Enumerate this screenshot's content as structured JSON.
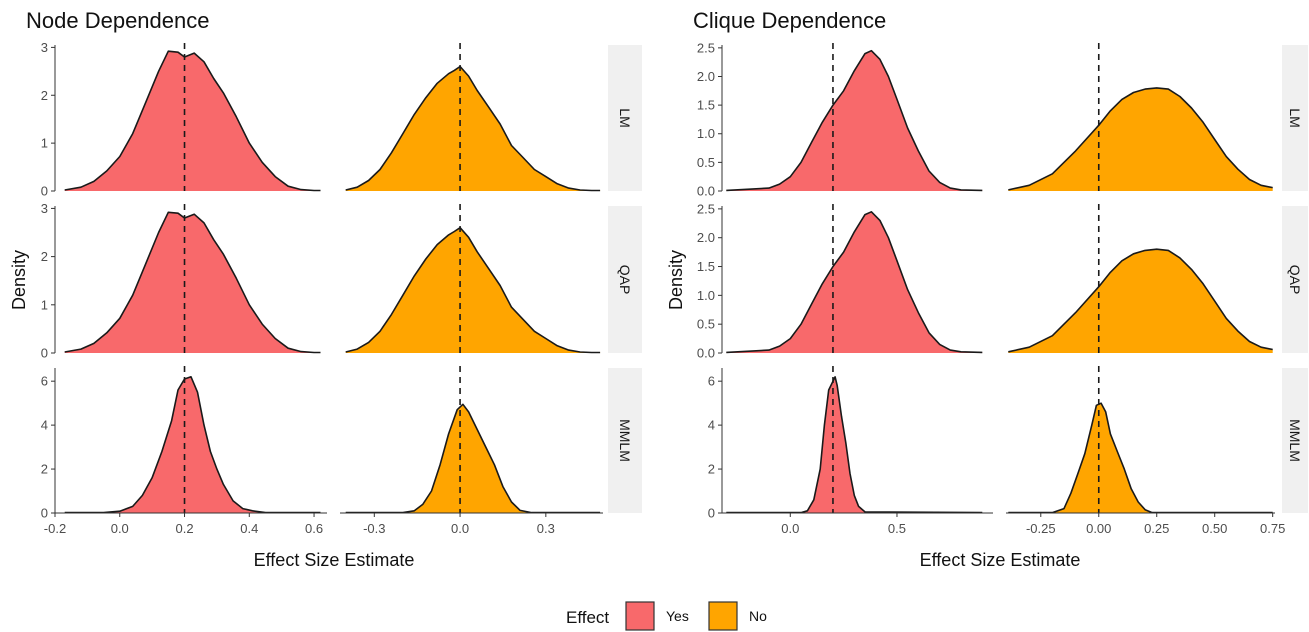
{
  "legend": {
    "title": "Effect",
    "items": [
      {
        "label": "Yes",
        "color": "#F8696B"
      },
      {
        "label": "No",
        "color": "#FFA500"
      }
    ]
  },
  "chart_data": [
    {
      "type": "area",
      "title": "Node Dependence",
      "xlabel": "Effect Size Estimate",
      "ylabel": "Density",
      "rows": [
        "LM",
        "QAP",
        "MMLM"
      ],
      "columns": [
        {
          "effect": "Yes",
          "color": "#F8696B",
          "reference_line": 0.2,
          "xlim": [
            -0.2,
            0.64
          ],
          "xticks": [
            "-0.2",
            "0.0",
            "0.2",
            "0.4",
            "0.6"
          ]
        },
        {
          "effect": "No",
          "color": "#FFA500",
          "reference_line": 0.0,
          "xlim": [
            -0.42,
            0.5
          ],
          "xticks": [
            "-0.3",
            "0.0",
            "0.3"
          ]
        }
      ],
      "y_axes": [
        {
          "row": "LM",
          "ylim": [
            0,
            3.05
          ],
          "yticks": [
            "0",
            "1",
            "2",
            "3"
          ]
        },
        {
          "row": "QAP",
          "ylim": [
            0,
            3.05
          ],
          "yticks": [
            "0",
            "1",
            "2",
            "3"
          ]
        },
        {
          "row": "MMLM",
          "ylim": [
            0,
            6.6
          ],
          "yticks": [
            "0",
            "2",
            "4",
            "6"
          ]
        }
      ],
      "series": [
        {
          "row": "LM",
          "effect": "Yes",
          "x": [
            -0.17,
            -0.12,
            -0.08,
            -0.04,
            0.0,
            0.04,
            0.08,
            0.12,
            0.15,
            0.18,
            0.2,
            0.23,
            0.26,
            0.29,
            0.32,
            0.36,
            0.4,
            0.44,
            0.48,
            0.52,
            0.56,
            0.6,
            0.62
          ],
          "y": [
            0.02,
            0.08,
            0.2,
            0.42,
            0.72,
            1.2,
            1.85,
            2.5,
            2.92,
            2.9,
            2.8,
            2.88,
            2.7,
            2.35,
            2.05,
            1.55,
            1.0,
            0.6,
            0.3,
            0.1,
            0.03,
            0.01,
            0.01
          ]
        },
        {
          "row": "LM",
          "effect": "No",
          "x": [
            -0.4,
            -0.36,
            -0.32,
            -0.28,
            -0.24,
            -0.2,
            -0.16,
            -0.12,
            -0.08,
            -0.04,
            -0.02,
            0.0,
            0.03,
            0.06,
            0.1,
            0.14,
            0.18,
            0.22,
            0.26,
            0.3,
            0.34,
            0.38,
            0.42,
            0.46,
            0.49
          ],
          "y": [
            0.02,
            0.08,
            0.22,
            0.45,
            0.8,
            1.2,
            1.6,
            1.95,
            2.25,
            2.45,
            2.52,
            2.6,
            2.4,
            2.1,
            1.75,
            1.4,
            0.95,
            0.7,
            0.45,
            0.3,
            0.15,
            0.06,
            0.02,
            0.01,
            0.01
          ]
        },
        {
          "row": "QAP",
          "effect": "Yes",
          "x": [
            -0.17,
            -0.12,
            -0.08,
            -0.04,
            0.0,
            0.04,
            0.08,
            0.12,
            0.15,
            0.18,
            0.2,
            0.23,
            0.26,
            0.29,
            0.32,
            0.36,
            0.4,
            0.44,
            0.48,
            0.52,
            0.56,
            0.6,
            0.62
          ],
          "y": [
            0.02,
            0.08,
            0.2,
            0.42,
            0.72,
            1.2,
            1.85,
            2.5,
            2.92,
            2.9,
            2.8,
            2.88,
            2.7,
            2.35,
            2.05,
            1.55,
            1.0,
            0.6,
            0.3,
            0.1,
            0.03,
            0.01,
            0.01
          ]
        },
        {
          "row": "QAP",
          "effect": "No",
          "x": [
            -0.4,
            -0.36,
            -0.32,
            -0.28,
            -0.24,
            -0.2,
            -0.16,
            -0.12,
            -0.08,
            -0.04,
            -0.02,
            0.0,
            0.03,
            0.06,
            0.1,
            0.14,
            0.18,
            0.22,
            0.26,
            0.3,
            0.34,
            0.38,
            0.42,
            0.46,
            0.49
          ],
          "y": [
            0.02,
            0.08,
            0.22,
            0.45,
            0.8,
            1.2,
            1.6,
            1.95,
            2.25,
            2.45,
            2.52,
            2.6,
            2.4,
            2.1,
            1.75,
            1.4,
            0.95,
            0.7,
            0.45,
            0.3,
            0.15,
            0.06,
            0.02,
            0.01,
            0.01
          ]
        },
        {
          "row": "MMLM",
          "effect": "Yes",
          "x": [
            -0.17,
            -0.05,
            0.0,
            0.04,
            0.07,
            0.1,
            0.13,
            0.16,
            0.18,
            0.2,
            0.22,
            0.24,
            0.26,
            0.28,
            0.3,
            0.32,
            0.35,
            0.38,
            0.41,
            0.45,
            0.62
          ],
          "y": [
            0.02,
            0.02,
            0.08,
            0.3,
            0.8,
            1.6,
            2.8,
            4.2,
            5.6,
            6.1,
            6.2,
            5.5,
            4.0,
            2.8,
            2.0,
            1.3,
            0.55,
            0.2,
            0.1,
            0.02,
            0.02
          ]
        },
        {
          "row": "MMLM",
          "effect": "No",
          "x": [
            -0.4,
            -0.2,
            -0.16,
            -0.13,
            -0.1,
            -0.07,
            -0.04,
            -0.01,
            0.01,
            0.03,
            0.06,
            0.09,
            0.12,
            0.15,
            0.18,
            0.21,
            0.25,
            0.49
          ],
          "y": [
            0.02,
            0.02,
            0.1,
            0.4,
            1.0,
            2.2,
            3.6,
            4.7,
            4.95,
            4.6,
            3.8,
            3.0,
            2.2,
            1.2,
            0.5,
            0.12,
            0.02,
            0.02
          ]
        }
      ]
    },
    {
      "type": "area",
      "title": "Clique Dependence",
      "xlabel": "Effect Size Estimate",
      "ylabel": "Density",
      "rows": [
        "LM",
        "QAP",
        "MMLM"
      ],
      "columns": [
        {
          "effect": "Yes",
          "color": "#F8696B",
          "reference_line": 0.2,
          "xlim": [
            -0.32,
            0.95
          ],
          "xticks": [
            "0.0",
            "0.5"
          ]
        },
        {
          "effect": "No",
          "color": "#FFA500",
          "reference_line": 0.0,
          "xlim": [
            -0.4,
            0.76
          ],
          "xticks": [
            "-0.25",
            "0.00",
            "0.25",
            "0.50",
            "0.75"
          ]
        }
      ],
      "y_axes": [
        {
          "row": "LM",
          "ylim": [
            0,
            2.55
          ],
          "yticks": [
            "0.0",
            "0.5",
            "1.0",
            "1.5",
            "2.0",
            "2.5"
          ]
        },
        {
          "row": "QAP",
          "ylim": [
            0,
            2.55
          ],
          "yticks": [
            "0.0",
            "0.5",
            "1.0",
            "1.5",
            "2.0",
            "2.5"
          ]
        },
        {
          "row": "MMLM",
          "ylim": [
            0,
            6.6
          ],
          "yticks": [
            "0",
            "2",
            "4",
            "6"
          ]
        }
      ],
      "series": [
        {
          "row": "LM",
          "effect": "Yes",
          "x": [
            -0.3,
            -0.1,
            -0.05,
            0.0,
            0.05,
            0.1,
            0.15,
            0.2,
            0.25,
            0.3,
            0.35,
            0.38,
            0.42,
            0.46,
            0.5,
            0.55,
            0.6,
            0.65,
            0.7,
            0.75,
            0.8,
            0.9
          ],
          "y": [
            0.01,
            0.05,
            0.12,
            0.25,
            0.5,
            0.85,
            1.2,
            1.5,
            1.75,
            2.1,
            2.4,
            2.45,
            2.3,
            2.0,
            1.6,
            1.1,
            0.7,
            0.35,
            0.15,
            0.05,
            0.02,
            0.01
          ]
        },
        {
          "row": "LM",
          "effect": "No",
          "x": [
            -0.39,
            -0.3,
            -0.2,
            -0.1,
            0.0,
            0.05,
            0.1,
            0.15,
            0.2,
            0.25,
            0.3,
            0.35,
            0.4,
            0.45,
            0.5,
            0.55,
            0.6,
            0.65,
            0.7,
            0.75
          ],
          "y": [
            0.02,
            0.1,
            0.3,
            0.7,
            1.15,
            1.4,
            1.6,
            1.72,
            1.78,
            1.8,
            1.78,
            1.65,
            1.45,
            1.2,
            0.9,
            0.6,
            0.38,
            0.2,
            0.1,
            0.06
          ]
        },
        {
          "row": "QAP",
          "effect": "Yes",
          "x": [
            -0.3,
            -0.1,
            -0.05,
            0.0,
            0.05,
            0.1,
            0.15,
            0.2,
            0.25,
            0.3,
            0.35,
            0.38,
            0.42,
            0.46,
            0.5,
            0.55,
            0.6,
            0.65,
            0.7,
            0.75,
            0.8,
            0.9
          ],
          "y": [
            0.01,
            0.05,
            0.12,
            0.25,
            0.5,
            0.85,
            1.2,
            1.5,
            1.75,
            2.1,
            2.4,
            2.45,
            2.3,
            2.0,
            1.6,
            1.1,
            0.7,
            0.35,
            0.15,
            0.05,
            0.02,
            0.01
          ]
        },
        {
          "row": "QAP",
          "effect": "No",
          "x": [
            -0.39,
            -0.3,
            -0.2,
            -0.1,
            0.0,
            0.05,
            0.1,
            0.15,
            0.2,
            0.25,
            0.3,
            0.35,
            0.4,
            0.45,
            0.5,
            0.55,
            0.6,
            0.65,
            0.7,
            0.75
          ],
          "y": [
            0.02,
            0.1,
            0.3,
            0.7,
            1.15,
            1.4,
            1.6,
            1.72,
            1.78,
            1.8,
            1.78,
            1.65,
            1.45,
            1.2,
            0.9,
            0.6,
            0.38,
            0.2,
            0.1,
            0.06
          ]
        },
        {
          "row": "MMLM",
          "effect": "Yes",
          "x": [
            -0.3,
            0.05,
            0.08,
            0.11,
            0.14,
            0.16,
            0.18,
            0.2,
            0.21,
            0.22,
            0.24,
            0.26,
            0.28,
            0.3,
            0.32,
            0.35,
            0.9
          ],
          "y": [
            0.02,
            0.02,
            0.1,
            0.6,
            2.0,
            4.0,
            5.6,
            6.0,
            6.2,
            5.8,
            4.4,
            3.2,
            1.8,
            0.8,
            0.3,
            0.05,
            0.02
          ]
        },
        {
          "row": "MMLM",
          "effect": "No",
          "x": [
            -0.39,
            -0.2,
            -0.15,
            -0.12,
            -0.09,
            -0.06,
            -0.03,
            -0.01,
            0.01,
            0.03,
            0.05,
            0.08,
            0.11,
            0.14,
            0.17,
            0.2,
            0.23,
            0.75
          ],
          "y": [
            0.02,
            0.02,
            0.2,
            0.9,
            1.8,
            2.7,
            4.0,
            4.9,
            5.0,
            4.6,
            3.6,
            2.8,
            2.0,
            1.1,
            0.5,
            0.15,
            0.02,
            0.02
          ]
        }
      ]
    }
  ]
}
